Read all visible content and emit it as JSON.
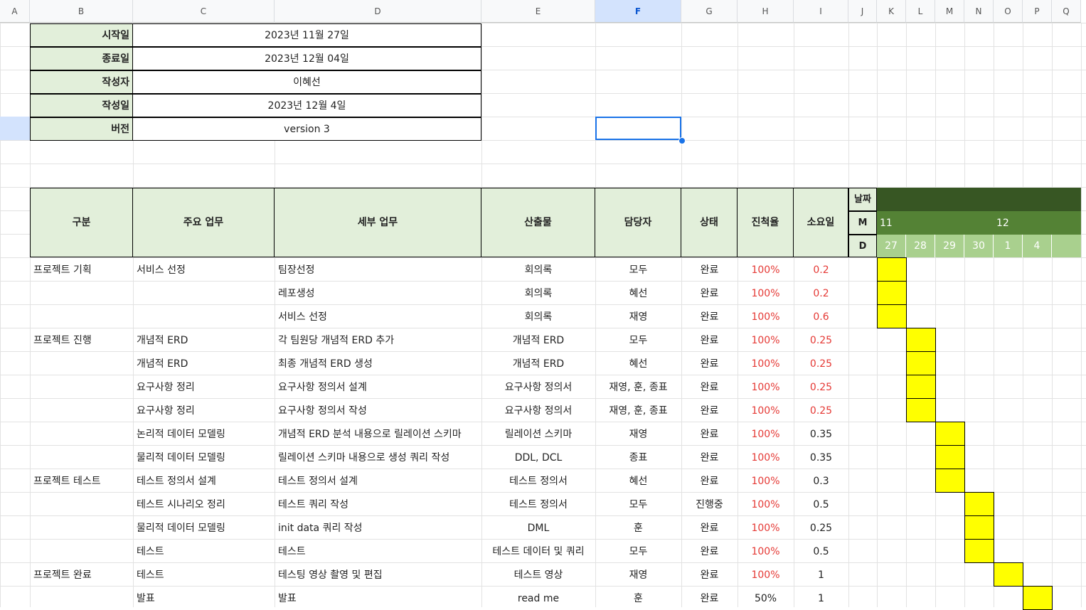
{
  "columns": [
    "A",
    "B",
    "C",
    "D",
    "E",
    "F",
    "G",
    "H",
    "I",
    "J",
    "K",
    "L",
    "M",
    "N",
    "O",
    "P",
    "Q"
  ],
  "selected_column": "F",
  "info": [
    {
      "label": "시작일",
      "value": "2023년 11월 27일"
    },
    {
      "label": "종료일",
      "value": "2023년 12월 04일"
    },
    {
      "label": "작성자",
      "value": "이혜선"
    },
    {
      "label": "작성일",
      "value": "2023년 12월 4일"
    },
    {
      "label": "버전",
      "value": "version 3"
    }
  ],
  "table_headers": [
    "구분",
    "주요 업무",
    "세부 업무",
    "산출물",
    "담당자",
    "상태",
    "진척율",
    "소요일"
  ],
  "gantt": {
    "date_label": "날짜",
    "month_label": "M",
    "day_label": "D",
    "months": [
      "11",
      "12"
    ],
    "days": [
      "27",
      "28",
      "29",
      "30",
      "1",
      "4"
    ]
  },
  "tasks": [
    {
      "category": "프로젝트 기획",
      "main": "서비스 선정",
      "detail": "팀장선정",
      "output": "회의록",
      "owner": "모두",
      "status": "완료",
      "progress": "100%",
      "duration": "0.2",
      "duration_red": true,
      "day_index": 0
    },
    {
      "category": "",
      "main": "",
      "detail": "레포생성",
      "output": "회의록",
      "owner": "혜선",
      "status": "완료",
      "progress": "100%",
      "duration": "0.2",
      "duration_red": true,
      "day_index": 0
    },
    {
      "category": "",
      "main": "",
      "detail": "서비스 선정",
      "output": "회의록",
      "owner": "재영",
      "status": "완료",
      "progress": "100%",
      "duration": "0.6",
      "duration_red": true,
      "day_index": 0
    },
    {
      "category": "프로젝트 진행",
      "main": "개념적 ERD",
      "detail": "각 팀원당 개념적 ERD 추가",
      "output": "개념적 ERD",
      "owner": "모두",
      "status": "완료",
      "progress": "100%",
      "duration": "0.25",
      "duration_red": true,
      "day_index": 1
    },
    {
      "category": "",
      "main": "개념적 ERD",
      "detail": "최종 개념적 ERD 생성",
      "output": "개념적 ERD",
      "owner": "혜선",
      "status": "완료",
      "progress": "100%",
      "duration": "0.25",
      "duration_red": true,
      "day_index": 1
    },
    {
      "category": "",
      "main": "요구사항 정리",
      "detail": "요구사항 정의서 설계",
      "output": "요구사항 정의서",
      "owner": "재영, 훈, 종표",
      "status": "완료",
      "progress": "100%",
      "duration": "0.25",
      "duration_red": true,
      "day_index": 1
    },
    {
      "category": "",
      "main": "요구사항 정리",
      "detail": "요구사항 정의서 작성",
      "output": "요구사항 정의서",
      "owner": "재영, 훈, 종표",
      "status": "완료",
      "progress": "100%",
      "duration": "0.25",
      "duration_red": true,
      "day_index": 1
    },
    {
      "category": "",
      "main": "논리적 데이터 모델링",
      "detail": "개념적 ERD 분석 내용으로 릴레이션 스키마",
      "output": "릴레이션 스키마",
      "owner": "재영",
      "status": "완료",
      "progress": "100%",
      "duration": "0.35",
      "duration_red": false,
      "day_index": 2
    },
    {
      "category": "",
      "main": "물리적 데이터 모델링",
      "detail": "릴레이션 스키마 내용으로 생성 쿼리 작성",
      "output": "DDL, DCL",
      "owner": "종표",
      "status": "완료",
      "progress": "100%",
      "duration": "0.35",
      "duration_red": false,
      "day_index": 2
    },
    {
      "category": "프로젝트 테스트",
      "main": "테스트 정의서 설계",
      "detail": "테스트 정의서 설계",
      "output": "테스트 정의서",
      "owner": "혜선",
      "status": "완료",
      "progress": "100%",
      "duration": "0.3",
      "duration_red": false,
      "day_index": 2
    },
    {
      "category": "",
      "main": "테스트 시나리오 정리",
      "detail": "테스트 쿼리 작성",
      "output": "테스트 정의서",
      "owner": "모두",
      "status": "진행중",
      "progress": "100%",
      "duration": "0.5",
      "duration_red": false,
      "day_index": 3
    },
    {
      "category": "",
      "main": "물리적 데이터 모델링",
      "detail": "init data 쿼리 작성",
      "output": "DML",
      "owner": "훈",
      "status": "완료",
      "progress": "100%",
      "duration": "0.25",
      "duration_red": false,
      "day_index": 3
    },
    {
      "category": "",
      "main": "테스트",
      "detail": "테스트",
      "output": "테스트 데이터 및 쿼리",
      "owner": "모두",
      "status": "완료",
      "progress": "100%",
      "duration": "0.5",
      "duration_red": false,
      "day_index": 3
    },
    {
      "category": "프로젝트 완료",
      "main": "테스트",
      "detail": "테스팅 영상 촬영 및 편집",
      "output": "테스트 영상",
      "owner": "재영",
      "status": "완료",
      "progress": "100%",
      "duration": "1",
      "duration_red": false,
      "day_index": 4
    },
    {
      "category": "",
      "main": "발표",
      "detail": "발표",
      "output": "read me",
      "owner": "훈",
      "status": "완료",
      "progress": "50%",
      "duration": "1",
      "duration_red": false,
      "day_index": 5
    }
  ],
  "colors": {
    "accent_green": "#e2efda",
    "gantt_dark": "#375623",
    "gantt_mid": "#548235",
    "gantt_light": "#a9d08e",
    "bar": "#ffff00",
    "progress_red": "#e53935",
    "selection": "#1a73e8"
  }
}
